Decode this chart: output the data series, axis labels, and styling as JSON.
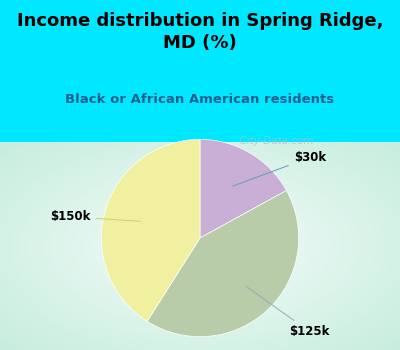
{
  "title": "Income distribution in Spring Ridge,\nMD (%)",
  "subtitle": "Black or African American residents",
  "slices": [
    {
      "label": "$30k",
      "value": 17,
      "color": "#c9aed6"
    },
    {
      "label": "$125k",
      "value": 42,
      "color": "#b8ccaa"
    },
    {
      "label": "$150k",
      "value": 41,
      "color": "#f0f0a0"
    }
  ],
  "bg_color_top": "#00e8ff",
  "title_color": "#000000",
  "subtitle_color": "#1a6090",
  "watermark": "City-Data.com",
  "startangle": 90,
  "label_fontsize": 8.5,
  "title_fontsize": 13,
  "subtitle_fontsize": 9.5
}
